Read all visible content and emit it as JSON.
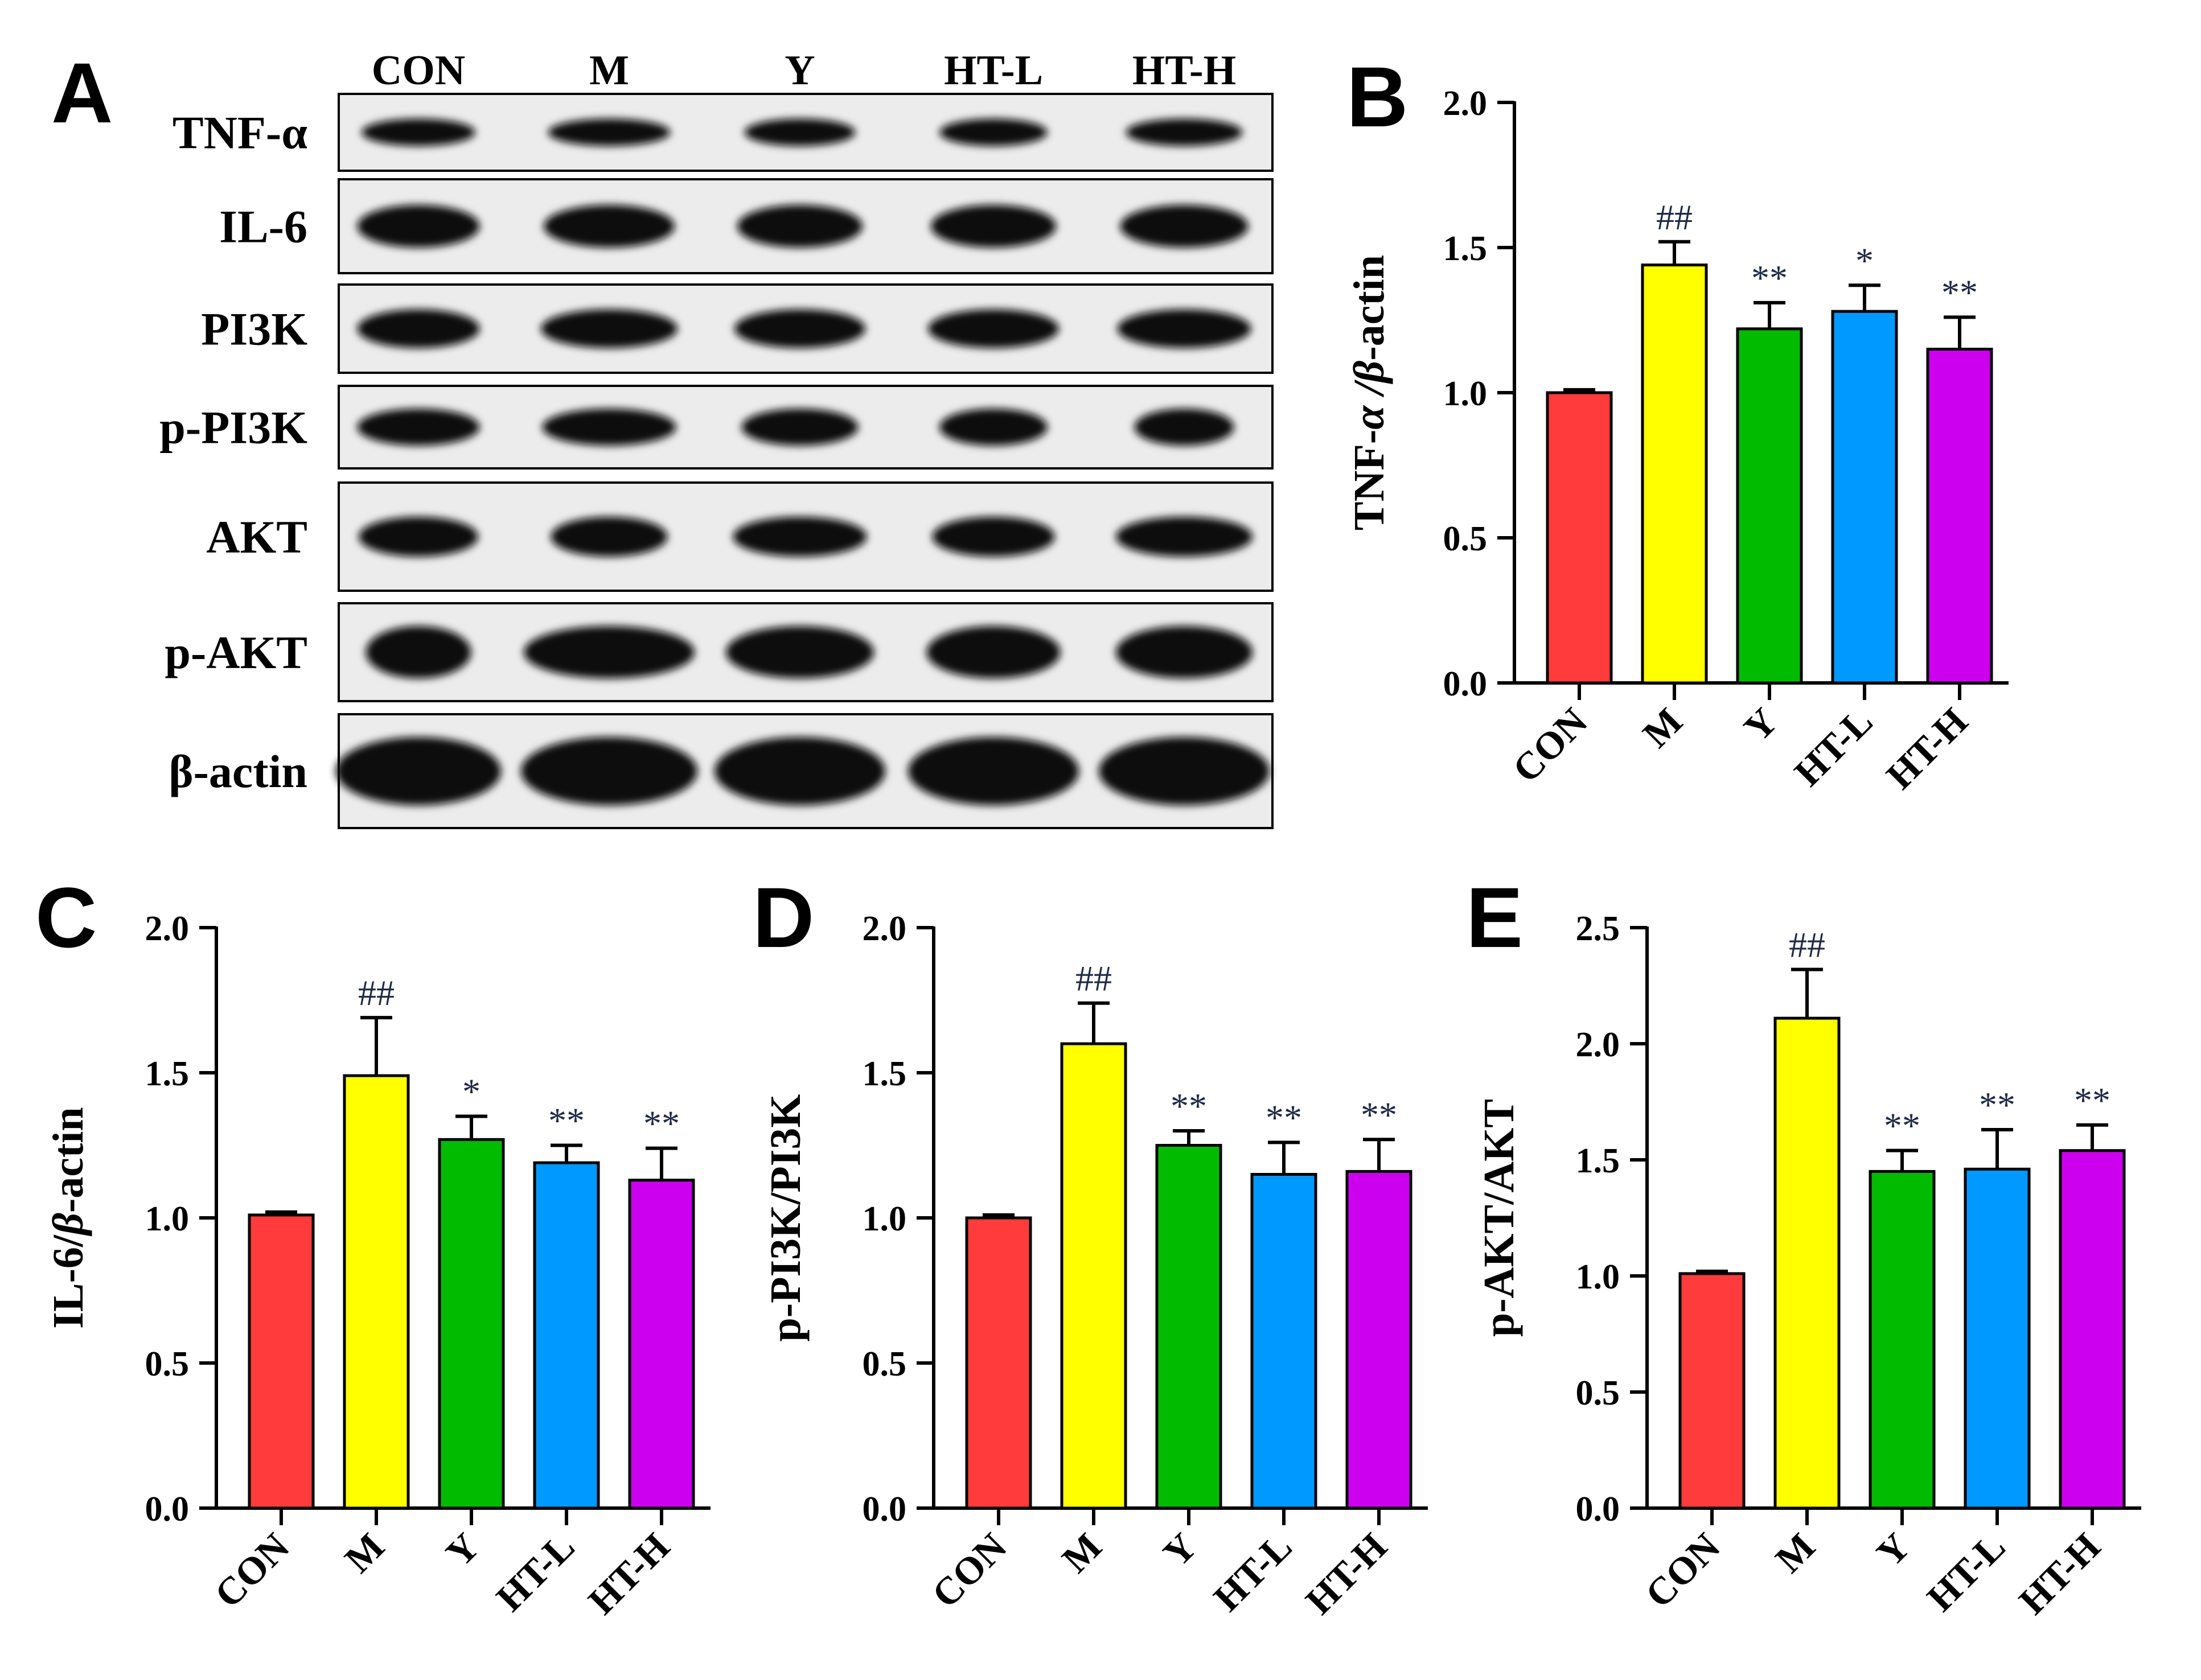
{
  "colors": {
    "CON": "#ff3b3b",
    "M": "#ffff00",
    "Y": "#00bb00",
    "HT-L": "#0099ff",
    "HT-H": "#cc00ee",
    "significance": "#1f2a44",
    "axis": "#000000"
  },
  "western_blot": {
    "panel_label": "A",
    "lanes": [
      "CON",
      "M",
      "Y",
      "HT-L",
      "HT-H"
    ],
    "proteins": [
      "TNF-α",
      "IL-6",
      "PI3K",
      "p-PI3K",
      "AKT",
      "p-AKT",
      "β-actin"
    ]
  },
  "chart_data": [
    {
      "panel": "B",
      "type": "bar",
      "categories": [
        "CON",
        "M",
        "Y",
        "HT-L",
        "HT-H"
      ],
      "values": [
        1.0,
        1.44,
        1.22,
        1.28,
        1.15
      ],
      "errors": [
        0.01,
        0.08,
        0.09,
        0.09,
        0.11
      ],
      "significance": [
        "",
        "##",
        "**",
        "*",
        "**"
      ],
      "ylabel_main": "TNF-",
      "ylabel_italic": "α /β",
      "ylabel_tail": "-actin",
      "ylim": [
        0,
        2.0
      ],
      "yticks": [
        "0.0",
        "0.5",
        "1.0",
        "1.5",
        "2.0"
      ]
    },
    {
      "panel": "C",
      "type": "bar",
      "categories": [
        "CON",
        "M",
        "Y",
        "HT-L",
        "HT-H"
      ],
      "values": [
        1.01,
        1.49,
        1.27,
        1.19,
        1.13
      ],
      "errors": [
        0.01,
        0.2,
        0.08,
        0.06,
        0.11
      ],
      "significance": [
        "",
        "##",
        "*",
        "**",
        "**"
      ],
      "ylabel_main": "IL-6/",
      "ylabel_italic": "β",
      "ylabel_tail": "-actin",
      "ylim": [
        0,
        2.0
      ],
      "yticks": [
        "0.0",
        "0.5",
        "1.0",
        "1.5",
        "2.0"
      ]
    },
    {
      "panel": "D",
      "type": "bar",
      "categories": [
        "CON",
        "M",
        "Y",
        "HT-L",
        "HT-H"
      ],
      "values": [
        1.0,
        1.6,
        1.25,
        1.15,
        1.16
      ],
      "errors": [
        0.01,
        0.14,
        0.05,
        0.11,
        0.11
      ],
      "significance": [
        "",
        "##",
        "**",
        "**",
        "**"
      ],
      "ylabel_main": "p-PI3K/PI3K",
      "ylabel_italic": "",
      "ylabel_tail": "",
      "ylim": [
        0,
        2.0
      ],
      "yticks": [
        "0.0",
        "0.5",
        "1.0",
        "1.5",
        "2.0"
      ]
    },
    {
      "panel": "E",
      "type": "bar",
      "categories": [
        "CON",
        "M",
        "Y",
        "HT-L",
        "HT-H"
      ],
      "values": [
        1.01,
        2.11,
        1.45,
        1.46,
        1.54
      ],
      "errors": [
        0.01,
        0.21,
        0.09,
        0.17,
        0.11
      ],
      "significance": [
        "",
        "##",
        "**",
        "**",
        "**"
      ],
      "ylabel_main": "p-AKT/AKT",
      "ylabel_italic": "",
      "ylabel_tail": "",
      "ylim": [
        0,
        2.5
      ],
      "yticks": [
        "0.0",
        "0.5",
        "1.0",
        "1.5",
        "2.0",
        "2.5"
      ]
    }
  ]
}
